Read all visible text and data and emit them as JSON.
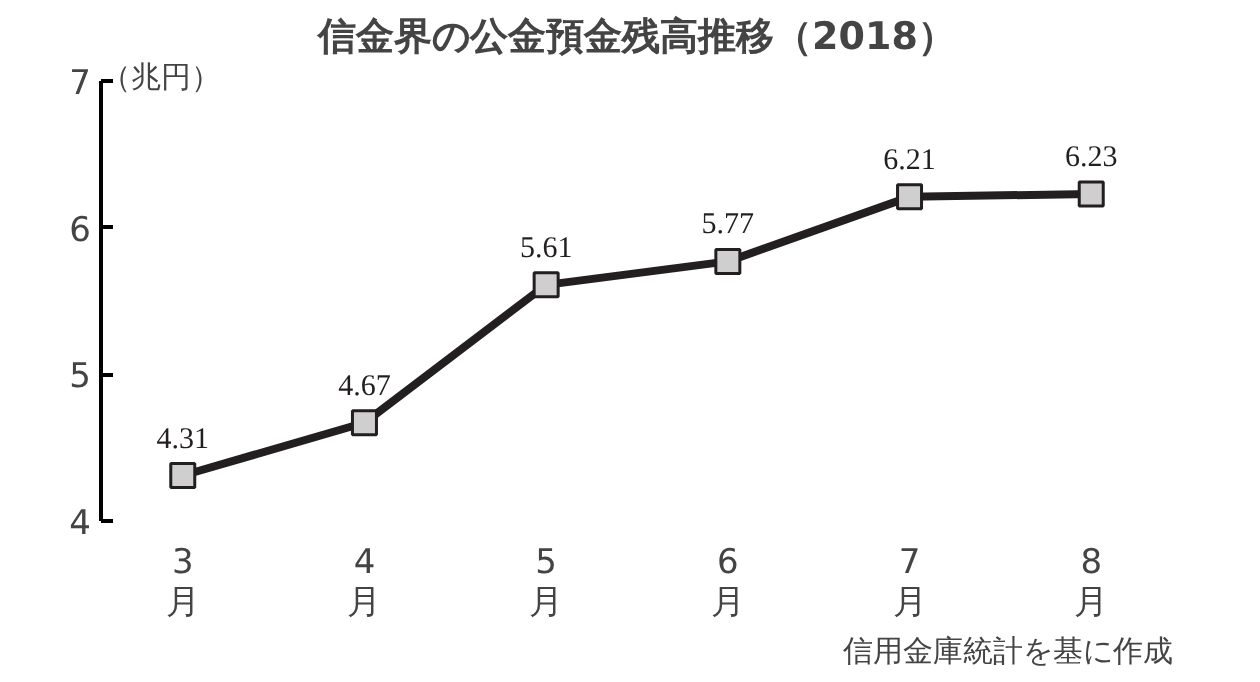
{
  "chart_data": {
    "type": "line",
    "title": "信金界の公金預金残高推移（2018）",
    "ylabel": "（兆円）",
    "categories": [
      "3月",
      "4月",
      "5月",
      "6月",
      "7月",
      "8月"
    ],
    "series": [
      {
        "color": "#231f20",
        "values": [
          4.31,
          4.67,
          5.61,
          5.77,
          6.21,
          6.23
        ]
      }
    ],
    "ylim": [
      4,
      7
    ],
    "yticks": [
      4,
      5,
      6,
      7
    ],
    "marker": "square",
    "data_labels": true,
    "grid": false,
    "annotations": [
      "信用金庫統計を基に作成"
    ]
  }
}
